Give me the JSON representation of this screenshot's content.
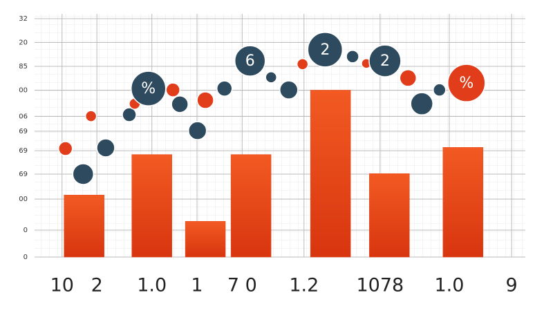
{
  "chart_data": [
    {
      "type": "bar",
      "x": [
        10.1,
        23.9,
        34.8,
        44.1,
        60.3,
        72.3,
        87.3
      ],
      "values": [
        26,
        43,
        15,
        43,
        70,
        35,
        46
      ],
      "color": "#e8461c",
      "xlim": [
        0,
        100
      ],
      "xticks": [
        {
          "value": 5.6,
          "label": "10"
        },
        {
          "value": 12.7,
          "label": "2"
        },
        {
          "value": 23.9,
          "label": "1.0"
        },
        {
          "value": 33.1,
          "label": "1"
        },
        {
          "value": 42.3,
          "label": "7 0"
        },
        {
          "value": 54.9,
          "label": "1.2"
        },
        {
          "value": 70.4,
          "label": "1078"
        },
        {
          "value": 84.5,
          "label": "1.0"
        },
        {
          "value": 97.2,
          "label": "9"
        }
      ],
      "ylim": [
        0,
        100
      ],
      "yticks": [
        {
          "value": 100,
          "label": "32"
        },
        {
          "value": 90,
          "label": "20"
        },
        {
          "value": 80,
          "label": "85"
        },
        {
          "value": 70,
          "label": "00"
        },
        {
          "value": 59,
          "label": "06"
        },
        {
          "value": 52.8,
          "label": "69"
        },
        {
          "value": 44.6,
          "label": "69"
        },
        {
          "value": 34.8,
          "label": "69"
        },
        {
          "value": 24.3,
          "label": "00"
        },
        {
          "value": 11.3,
          "label": "0"
        },
        0
      ],
      "grid": true
    },
    {
      "type": "scatter",
      "x": [
        6.3,
        9.9,
        14.5,
        11.5,
        19.3,
        20.4,
        23.2,
        28.2,
        29.6,
        33.2,
        34.8,
        38.7,
        43.9,
        48.2,
        51.8,
        54.6,
        59.2,
        64.8,
        67.6,
        71.4,
        76.1,
        78.9,
        82.5,
        88.0
      ],
      "y": [
        45.5,
        34.8,
        45.8,
        59.1,
        59.7,
        64.3,
        70.7,
        70.1,
        64.1,
        53.0,
        65.8,
        70.7,
        82.3,
        75.4,
        70.1,
        80.9,
        87.0,
        84.1,
        81.2,
        82.3,
        75.1,
        64.3,
        70.1,
        73.0
      ],
      "sizes": [
        10,
        15,
        13,
        8,
        10,
        8,
        25,
        10,
        12,
        13,
        12,
        11,
        22,
        8,
        13,
        8,
        25,
        9,
        7,
        23,
        12,
        16,
        9,
        27
      ],
      "colors": [
        "#e23d1a",
        "#2e4a5e",
        "#2e4a5e",
        "#e23d1a",
        "#2e4a5e",
        "#e23d1a",
        "#2e4a5e",
        "#e23d1a",
        "#2e4a5e",
        "#2e4a5e",
        "#e23d1a",
        "#2e4a5e",
        "#2e4a5e",
        "#2e4a5e",
        "#2e4a5e",
        "#e23d1a",
        "#2e4a5e",
        "#2e4a5e",
        "#e23d1a",
        "#2e4a5e",
        "#e23d1a",
        "#2e4a5e",
        "#2e4a5e",
        "#e23d1a"
      ],
      "labels": [
        null,
        null,
        null,
        null,
        null,
        null,
        "%",
        null,
        null,
        null,
        null,
        null,
        "6",
        null,
        null,
        null,
        "2",
        null,
        null,
        "2",
        null,
        null,
        null,
        "%"
      ],
      "xlim": [
        0,
        100
      ],
      "ylim": [
        0,
        100
      ]
    }
  ]
}
